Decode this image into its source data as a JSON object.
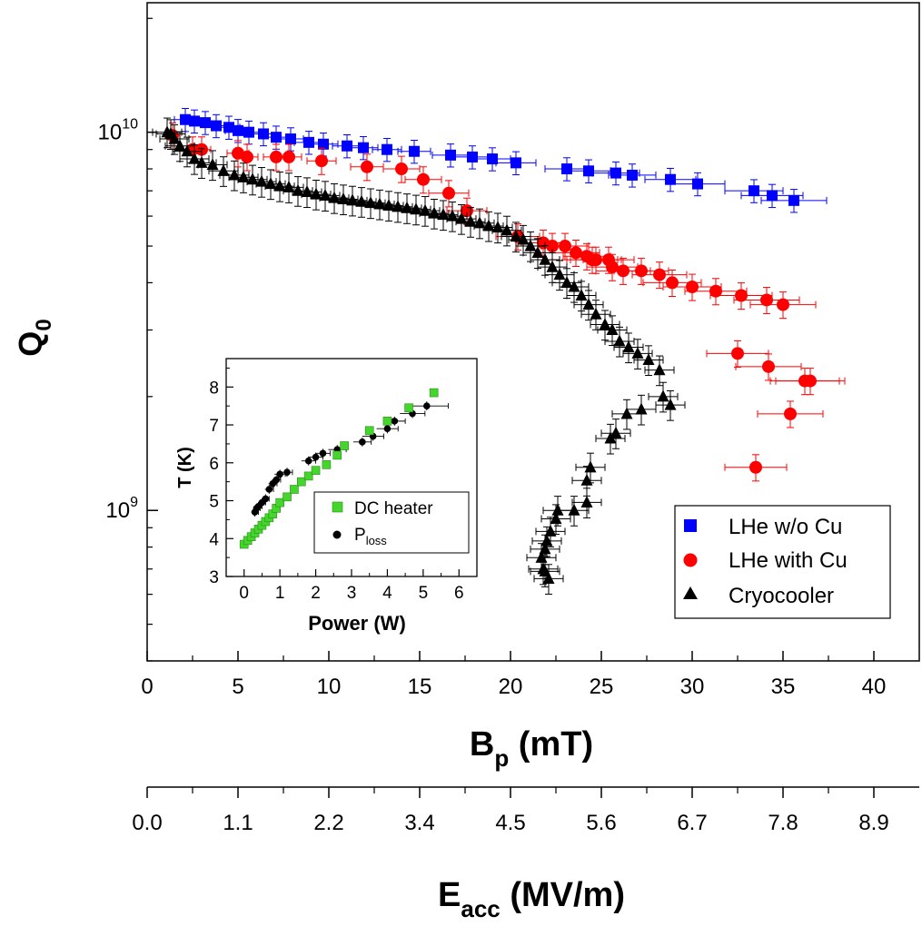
{
  "chart_data": [
    {
      "type": "scatter",
      "name": "main",
      "ylog": true,
      "xlim": [
        0,
        42.5
      ],
      "ylim": [
        400000000.0,
        22000000000.0
      ],
      "xticks": [
        0,
        5,
        10,
        15,
        20,
        25,
        30,
        35,
        40
      ],
      "xtick_labels": [
        "0",
        "5",
        "10",
        "15",
        "20",
        "25",
        "30",
        "35",
        "40"
      ],
      "xlabel": "B",
      "xlabel_sub": "p",
      "xlabel_unit": " (mT)",
      "ylabel": "Q",
      "ylabel_sub": "0",
      "yticks": [
        1000000000.0,
        10000000000.0
      ],
      "ytick_labels": [
        {
          "base": "10",
          "exp": "9"
        },
        {
          "base": "10",
          "exp": "10"
        }
      ],
      "secondary_xaxis": {
        "label": "E",
        "label_sub": "acc",
        "label_unit": " (MV/m)",
        "tick_labels": [
          "0.0",
          "1.1",
          "2.2",
          "3.4",
          "4.5",
          "5.6",
          "6.7",
          "7.8",
          "8.9"
        ],
        "note": "Same scale as B_p axis: E_acc = B_p / 4.5"
      },
      "legend": {
        "position": "bottom-right",
        "entries": [
          "LHe w/o Cu",
          "LHe with Cu",
          "Cryocooler"
        ]
      },
      "series": [
        {
          "name": "LHe w/o Cu",
          "marker": "square",
          "color": "#0000ff",
          "points": [
            [
              2.1,
              10800000000.0
            ],
            [
              2.6,
              10700000000.0
            ],
            [
              3.2,
              10600000000.0
            ],
            [
              3.8,
              10400000000.0
            ],
            [
              4.5,
              10300000000.0
            ],
            [
              5.0,
              10100000000.0
            ],
            [
              5.6,
              10000000000.0
            ],
            [
              6.4,
              9900000000.0
            ],
            [
              7.1,
              9700000000.0
            ],
            [
              7.9,
              9600000000.0
            ],
            [
              8.9,
              9400000000.0
            ],
            [
              9.7,
              9300000000.0
            ],
            [
              11.0,
              9200000000.0
            ],
            [
              11.9,
              9100000000.0
            ],
            [
              13.2,
              9000000000.0
            ],
            [
              14.7,
              8900000000.0
            ],
            [
              16.7,
              8700000000.0
            ],
            [
              17.9,
              8600000000.0
            ],
            [
              19.0,
              8500000000.0
            ],
            [
              20.3,
              8300000000.0
            ],
            [
              23.1,
              8000000000.0
            ],
            [
              24.3,
              7900000000.0
            ],
            [
              25.8,
              7800000000.0
            ],
            [
              26.7,
              7700000000.0
            ],
            [
              28.8,
              7500000000.0
            ],
            [
              30.3,
              7300000000.0
            ],
            [
              33.4,
              7000000000.0
            ],
            [
              34.4,
              6800000000.0
            ],
            [
              35.6,
              6600000000.0
            ]
          ],
          "xerr": [
            0.6,
            0.6,
            0.6,
            0.6,
            0.6,
            0.7,
            0.7,
            0.7,
            0.7,
            0.7,
            0.8,
            0.8,
            0.8,
            0.8,
            0.8,
            0.9,
            1.0,
            1.0,
            1.0,
            1.1,
            1.2,
            1.2,
            1.3,
            1.3,
            1.4,
            1.5,
            1.6,
            1.7,
            1.8
          ],
          "yerr_rel": 0.07
        },
        {
          "name": "LHe with Cu",
          "marker": "circle",
          "color": "#ff0000",
          "points": [
            [
              1.4,
              9800000000.0
            ],
            [
              2.5,
              9000000000.0
            ],
            [
              3.0,
              9000000000.0
            ],
            [
              5.0,
              8800000000.0
            ],
            [
              5.5,
              8600000000.0
            ],
            [
              7.1,
              8600000000.0
            ],
            [
              7.8,
              8600000000.0
            ],
            [
              9.6,
              8400000000.0
            ],
            [
              12.1,
              8100000000.0
            ],
            [
              14.0,
              8000000000.0
            ],
            [
              15.2,
              7500000000.0
            ],
            [
              16.6,
              6900000000.0
            ],
            [
              17.6,
              6200000000.0
            ],
            [
              20.4,
              5300000000.0
            ],
            [
              21.8,
              5100000000.0
            ],
            [
              22.3,
              5000000000.0
            ],
            [
              23.0,
              5000000000.0
            ],
            [
              23.6,
              4800000000.0
            ],
            [
              24.2,
              4700000000.0
            ],
            [
              24.5,
              4600000000.0
            ],
            [
              24.7,
              4600000000.0
            ],
            [
              25.4,
              4600000000.0
            ],
            [
              25.6,
              4400000000.0
            ],
            [
              26.2,
              4300000000.0
            ],
            [
              27.2,
              4300000000.0
            ],
            [
              28.2,
              4200000000.0
            ],
            [
              28.9,
              4000000000.0
            ],
            [
              30.0,
              3900000000.0
            ],
            [
              31.3,
              3800000000.0
            ],
            [
              32.7,
              3700000000.0
            ],
            [
              34.1,
              3600000000.0
            ],
            [
              35.0,
              3500000000.0
            ],
            [
              32.5,
              2600000000.0
            ],
            [
              34.2,
              2400000000.0
            ],
            [
              36.2,
              2200000000.0
            ],
            [
              36.5,
              2200000000.0
            ],
            [
              35.4,
              1800000000.0
            ],
            [
              33.5,
              1300000000.0
            ]
          ],
          "xerr": [
            0.4,
            0.5,
            0.5,
            0.6,
            0.6,
            0.7,
            0.7,
            0.8,
            0.9,
            1.0,
            1.0,
            1.1,
            1.1,
            1.2,
            1.2,
            1.3,
            1.3,
            1.3,
            1.3,
            1.4,
            1.4,
            1.4,
            1.4,
            1.5,
            1.5,
            1.5,
            1.6,
            1.6,
            1.7,
            1.7,
            1.8,
            1.8,
            1.7,
            1.8,
            1.9,
            1.9,
            1.8,
            1.7
          ],
          "yerr_rel": 0.08
        },
        {
          "name": "Cryocooler",
          "marker": "triangle",
          "color": "#000000",
          "points": [
            [
              1.1,
              10000000000.0
            ],
            [
              1.3,
              9900000000.0
            ],
            [
              1.5,
              9600000000.0
            ],
            [
              1.8,
              9200000000.0
            ],
            [
              2.2,
              8900000000.0
            ],
            [
              2.6,
              8500000000.0
            ],
            [
              3.0,
              8300000000.0
            ],
            [
              3.6,
              8200000000.0
            ],
            [
              4.2,
              7900000000.0
            ],
            [
              4.8,
              7700000000.0
            ],
            [
              5.3,
              7600000000.0
            ],
            [
              5.8,
              7500000000.0
            ],
            [
              6.3,
              7400000000.0
            ],
            [
              6.8,
              7300000000.0
            ],
            [
              7.3,
              7200000000.0
            ],
            [
              7.8,
              7150000000.0
            ],
            [
              8.3,
              7000000000.0
            ],
            [
              8.8,
              6950000000.0
            ],
            [
              9.3,
              6850000000.0
            ],
            [
              9.8,
              6800000000.0
            ],
            [
              10.3,
              6700000000.0
            ],
            [
              10.8,
              6650000000.0
            ],
            [
              11.3,
              6600000000.0
            ],
            [
              11.8,
              6550000000.0
            ],
            [
              12.3,
              6500000000.0
            ],
            [
              12.8,
              6450000000.0
            ],
            [
              13.3,
              6400000000.0
            ],
            [
              13.8,
              6350000000.0
            ],
            [
              14.3,
              6300000000.0
            ],
            [
              14.8,
              6250000000.0
            ],
            [
              15.3,
              6200000000.0
            ],
            [
              15.8,
              6100000000.0
            ],
            [
              16.3,
              6050000000.0
            ],
            [
              16.8,
              6000000000.0
            ],
            [
              17.3,
              5900000000.0
            ],
            [
              17.8,
              5800000000.0
            ],
            [
              18.3,
              5750000000.0
            ],
            [
              18.8,
              5650000000.0
            ],
            [
              19.3,
              5600000000.0
            ],
            [
              19.8,
              5500000000.0
            ],
            [
              20.3,
              5300000000.0
            ],
            [
              20.7,
              5200000000.0
            ],
            [
              21.1,
              5000000000.0
            ],
            [
              21.5,
              4800000000.0
            ],
            [
              21.9,
              4600000000.0
            ],
            [
              22.3,
              4400000000.0
            ],
            [
              22.7,
              4200000000.0
            ],
            [
              23.1,
              4000000000.0
            ],
            [
              23.5,
              3900000000.0
            ],
            [
              23.9,
              3700000000.0
            ],
            [
              24.3,
              3500000000.0
            ],
            [
              24.7,
              3300000000.0
            ],
            [
              25.2,
              3100000000.0
            ],
            [
              25.6,
              3000000000.0
            ],
            [
              26.0,
              2800000000.0
            ],
            [
              26.5,
              2700000000.0
            ],
            [
              27.0,
              2600000000.0
            ],
            [
              27.6,
              2500000000.0
            ],
            [
              28.2,
              2350000000.0
            ],
            [
              28.4,
              2000000000.0
            ],
            [
              28.8,
              1900000000.0
            ],
            [
              27.2,
              1850000000.0
            ],
            [
              26.4,
              1800000000.0
            ],
            [
              25.8,
              1600000000.0
            ],
            [
              25.5,
              1550000000.0
            ],
            [
              24.4,
              1300000000.0
            ],
            [
              24.2,
              1200000000.0
            ],
            [
              24.2,
              1050000000.0
            ],
            [
              23.5,
              1000000000.0
            ],
            [
              22.6,
              1000000000.0
            ],
            [
              22.5,
              950000000.0
            ],
            [
              22.2,
              880000000.0
            ],
            [
              22.0,
              830000000.0
            ],
            [
              21.9,
              790000000.0
            ],
            [
              21.7,
              750000000.0
            ],
            [
              21.8,
              700000000.0
            ],
            [
              21.9,
              690000000.0
            ],
            [
              22.1,
              660000000.0
            ]
          ],
          "yerr_rel": 0.09
        }
      ]
    },
    {
      "type": "scatter",
      "name": "inset",
      "xlim": [
        -0.5,
        6.5
      ],
      "ylim": [
        3,
        8.75
      ],
      "xticks": [
        0,
        1,
        2,
        3,
        4,
        5,
        6
      ],
      "xtick_labels": [
        "0",
        "1",
        "2",
        "3",
        "4",
        "5",
        "6"
      ],
      "yticks": [
        3,
        4,
        5,
        6,
        7,
        8
      ],
      "ytick_labels": [
        "3",
        "4",
        "5",
        "6",
        "7",
        "8"
      ],
      "xlabel": "Power (W)",
      "ylabel": "T (K)",
      "legend": {
        "position": "bottom-right",
        "entries": [
          {
            "label": "DC heater"
          },
          {
            "label": "P",
            "sub": "loss"
          }
        ]
      },
      "series": [
        {
          "name": "DC heater",
          "marker": "square",
          "color": "#44d62c",
          "points": [
            [
              0.0,
              3.85
            ],
            [
              0.1,
              3.95
            ],
            [
              0.2,
              4.05
            ],
            [
              0.3,
              4.15
            ],
            [
              0.4,
              4.25
            ],
            [
              0.5,
              4.35
            ],
            [
              0.6,
              4.45
            ],
            [
              0.7,
              4.55
            ],
            [
              0.8,
              4.65
            ],
            [
              0.9,
              4.8
            ],
            [
              1.0,
              4.95
            ],
            [
              1.2,
              5.1
            ],
            [
              1.4,
              5.3
            ],
            [
              1.6,
              5.5
            ],
            [
              1.8,
              5.65
            ],
            [
              2.0,
              5.8
            ],
            [
              2.3,
              5.95
            ],
            [
              2.6,
              6.2
            ],
            [
              2.8,
              6.45
            ],
            [
              3.5,
              6.85
            ],
            [
              4.0,
              7.1
            ],
            [
              4.6,
              7.45
            ],
            [
              5.3,
              7.85
            ]
          ]
        },
        {
          "name": "P_loss",
          "marker": "circle",
          "color": "#000000",
          "points": [
            [
              0.3,
              4.7
            ],
            [
              0.35,
              4.8
            ],
            [
              0.4,
              4.85
            ],
            [
              0.5,
              4.95
            ],
            [
              0.6,
              5.05
            ],
            [
              0.7,
              5.3
            ],
            [
              0.8,
              5.45
            ],
            [
              0.9,
              5.55
            ],
            [
              1.0,
              5.7
            ],
            [
              1.2,
              5.75
            ],
            [
              1.8,
              6.05
            ],
            [
              2.0,
              6.15
            ],
            [
              2.2,
              6.25
            ],
            [
              2.6,
              6.35
            ],
            [
              3.3,
              6.55
            ],
            [
              3.6,
              6.7
            ],
            [
              4.0,
              6.9
            ],
            [
              4.2,
              7.1
            ],
            [
              4.7,
              7.3
            ],
            [
              5.1,
              7.5
            ]
          ],
          "xerr": [
            0.1,
            0.1,
            0.1,
            0.1,
            0.1,
            0.12,
            0.12,
            0.12,
            0.15,
            0.15,
            0.2,
            0.2,
            0.2,
            0.25,
            0.25,
            0.3,
            0.3,
            0.3,
            0.35,
            0.6
          ],
          "yerr": [
            0.12,
            0.12,
            0.12,
            0.12,
            0.12,
            0.12,
            0.12,
            0.12,
            0.12,
            0.12,
            0.12,
            0.12,
            0.12,
            0.12,
            0.12,
            0.12,
            0.12,
            0.12,
            0.12,
            0.12
          ]
        }
      ]
    }
  ]
}
